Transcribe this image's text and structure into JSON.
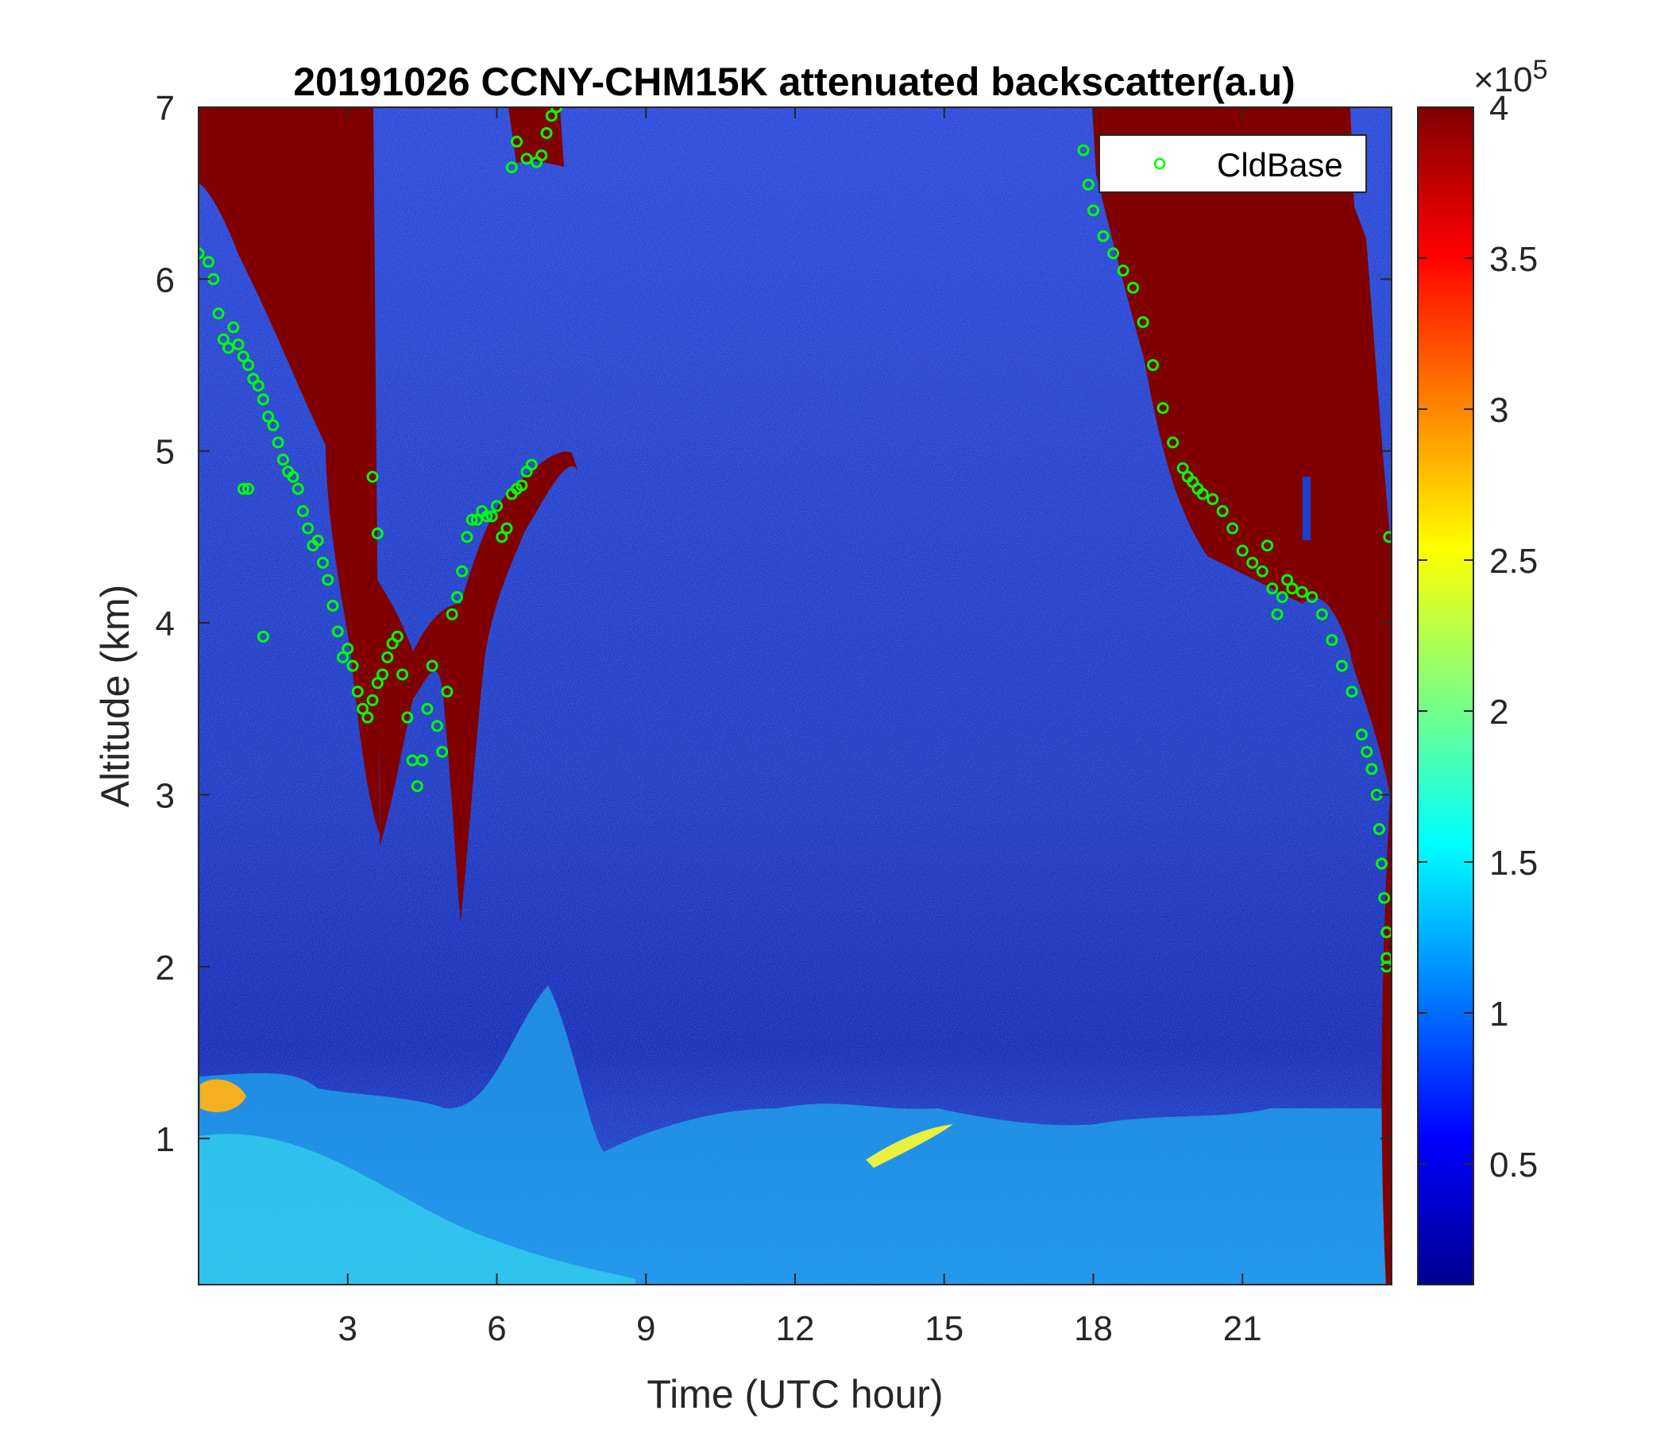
{
  "chart_data": {
    "type": "heatmap",
    "title": "20191026 CCNY-CHM15K attenuated backscatter(a.u)",
    "xlabel": "Time (UTC hour)",
    "ylabel": "Altitude (km)",
    "xlim": [
      0,
      24
    ],
    "ylim": [
      0.15,
      7
    ],
    "xticks": [
      3,
      6,
      9,
      12,
      15,
      18,
      21
    ],
    "xtick_labels": [
      "3",
      "6",
      "9",
      "12",
      "15",
      "18",
      "21"
    ],
    "yticks": [
      1,
      2,
      3,
      4,
      5,
      6,
      7
    ],
    "ytick_labels": [
      "1",
      "2",
      "3",
      "4",
      "5",
      "6",
      "7"
    ],
    "colorbar": {
      "colormap": "jet",
      "range": [
        0.1,
        4
      ],
      "ticks": [
        0.5,
        1,
        1.5,
        2,
        2.5,
        3,
        3.5,
        4
      ],
      "tick_labels": [
        "0.5",
        "1",
        "1.5",
        "2",
        "2.5",
        "3",
        "3.5",
        "4"
      ],
      "exponent_prefix": "×10",
      "exponent": "5"
    },
    "legend": {
      "placement": "top-right",
      "entries": [
        "CldBase"
      ],
      "marker": "circle",
      "color": "#00ff00"
    },
    "series": [
      {
        "name": "CldBase",
        "type": "scatter",
        "x": [
          0.0,
          0.2,
          0.3,
          0.4,
          0.5,
          0.6,
          0.7,
          0.8,
          0.9,
          1.0,
          1.1,
          1.2,
          1.3,
          1.4,
          1.5,
          1.6,
          1.7,
          1.8,
          1.9,
          2.0,
          2.1,
          2.2,
          2.3,
          2.4,
          2.5,
          2.6,
          2.7,
          2.8,
          2.9,
          3.0,
          3.1,
          3.2,
          3.3,
          3.4,
          3.5,
          3.6,
          3.7,
          3.8,
          3.9,
          4.0,
          4.1,
          4.2,
          4.3,
          4.4,
          4.5,
          4.6,
          4.7,
          4.8,
          4.9,
          5.0,
          5.1,
          5.2,
          5.3,
          5.4,
          5.5,
          5.6,
          5.7,
          5.8,
          5.9,
          6.0,
          6.1,
          6.2,
          6.3,
          6.4,
          6.5,
          6.6,
          6.7,
          0.9,
          1.0,
          1.3,
          3.5,
          3.6,
          6.3,
          6.4,
          6.6,
          6.8,
          6.9,
          7.0,
          7.1,
          7.2,
          17.8,
          17.9,
          18.0,
          18.2,
          18.4,
          18.6,
          18.8,
          19.0,
          19.2,
          19.4,
          19.6,
          19.8,
          19.9,
          20.0,
          20.1,
          20.2,
          20.4,
          20.6,
          20.8,
          21.0,
          21.2,
          21.4,
          21.5,
          21.6,
          21.7,
          21.8,
          21.9,
          22.0,
          22.2,
          22.4,
          22.6,
          22.8,
          23.0,
          23.2,
          23.4,
          23.5,
          23.6,
          23.7,
          23.75,
          23.8,
          23.85,
          23.9,
          23.9,
          23.9,
          23.95
        ],
        "y": [
          6.15,
          6.1,
          6.0,
          5.8,
          5.65,
          5.6,
          5.72,
          5.62,
          5.55,
          5.5,
          5.42,
          5.38,
          5.3,
          5.2,
          5.15,
          5.05,
          4.95,
          4.88,
          4.85,
          4.78,
          4.65,
          4.55,
          4.45,
          4.48,
          4.35,
          4.25,
          4.1,
          3.95,
          3.8,
          3.85,
          3.75,
          3.6,
          3.5,
          3.45,
          3.55,
          3.65,
          3.7,
          3.8,
          3.88,
          3.92,
          3.7,
          3.45,
          3.2,
          3.05,
          3.2,
          3.5,
          3.75,
          3.4,
          3.25,
          3.6,
          4.05,
          4.15,
          4.3,
          4.5,
          4.6,
          4.6,
          4.65,
          4.62,
          4.62,
          4.68,
          4.5,
          4.55,
          4.75,
          4.78,
          4.8,
          4.88,
          4.92,
          4.78,
          4.78,
          3.92,
          4.85,
          4.52,
          6.65,
          6.8,
          6.7,
          6.68,
          6.72,
          6.85,
          6.95,
          7.0,
          6.75,
          6.55,
          6.4,
          6.25,
          6.15,
          6.05,
          5.95,
          5.75,
          5.5,
          5.25,
          5.05,
          4.9,
          4.85,
          4.82,
          4.78,
          4.75,
          4.72,
          4.65,
          4.55,
          4.42,
          4.35,
          4.3,
          4.45,
          4.2,
          4.05,
          4.15,
          4.25,
          4.2,
          4.18,
          4.15,
          4.05,
          3.9,
          3.75,
          3.6,
          3.35,
          3.25,
          3.15,
          3.0,
          2.8,
          2.6,
          2.4,
          2.2,
          2.05,
          2.0,
          4.5
        ]
      }
    ]
  }
}
